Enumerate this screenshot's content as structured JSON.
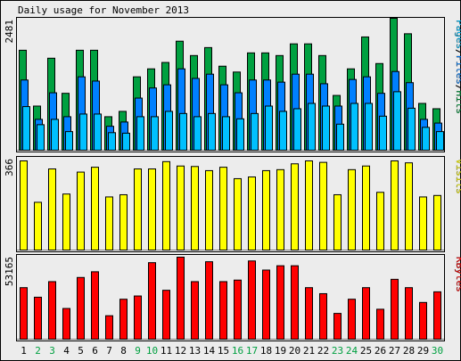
{
  "chart_data": {
    "type": "bar",
    "title": "Daily usage for November 2013",
    "categories": [
      "1",
      "2",
      "3",
      "4",
      "5",
      "6",
      "7",
      "8",
      "9",
      "10",
      "11",
      "12",
      "13",
      "14",
      "15",
      "16",
      "17",
      "18",
      "19",
      "20",
      "21",
      "22",
      "23",
      "24",
      "25",
      "26",
      "27",
      "28",
      "29",
      "30"
    ],
    "weekend_days": [
      "2",
      "3",
      "9",
      "10",
      "16",
      "17",
      "23",
      "24",
      "30"
    ],
    "colors": {
      "background": "#ececec",
      "hits": "#00a040",
      "files": "#0080ff",
      "pages": "#00c0ff",
      "visits": "#ffff00",
      "kbytes": "#ff0000",
      "weekday_label": "#000000",
      "weekend_label": "#00a040"
    },
    "panels": [
      {
        "id": "usage",
        "max_label": "2481",
        "ymax": 2481,
        "legend": [
          {
            "text": "Pages",
            "color": "#00c0ff"
          },
          {
            "text": "/",
            "color": "#000000"
          },
          {
            "text": "Files",
            "color": "#0080ff"
          },
          {
            "text": "/",
            "color": "#000000"
          },
          {
            "text": "Hits",
            "color": "#00a040"
          }
        ],
        "series": [
          {
            "name": "Hits",
            "color": "#00a040",
            "values": [
              1880,
              830,
              1730,
              1070,
              1880,
              1880,
              630,
              730,
              1380,
              1530,
              1650,
              2050,
              1780,
              1930,
              1580,
              1470,
              1830,
              1830,
              1780,
              2000,
              2000,
              1780,
              1030,
              1530,
              2130,
              1630,
              2481,
              2190,
              880,
              780
            ]
          },
          {
            "name": "Files",
            "color": "#0080ff",
            "values": [
              1320,
              580,
              1080,
              630,
              1380,
              1300,
              450,
              530,
              980,
              1170,
              1230,
              1530,
              1350,
              1430,
              1230,
              1080,
              1320,
              1320,
              1280,
              1430,
              1430,
              1250,
              830,
              1330,
              1380,
              1070,
              1480,
              1270,
              580,
              510
            ]
          },
          {
            "name": "Pages",
            "color": "#00c0ff",
            "values": [
              820,
              480,
              580,
              350,
              680,
              680,
              330,
              320,
              630,
              630,
              730,
              690,
              630,
              690,
              630,
              590,
              690,
              830,
              730,
              780,
              880,
              830,
              490,
              880,
              880,
              640,
              1100,
              790,
              430,
              350
            ]
          }
        ]
      },
      {
        "id": "visits",
        "max_label": "366",
        "ymax": 366,
        "legend": [
          {
            "text": "Visits",
            "color": "#ffff00"
          }
        ],
        "series": [
          {
            "name": "Visits",
            "color": "#ffff00",
            "values": [
              366,
              196,
              333,
              230,
              320,
              340,
              218,
              227,
              333,
              333,
              363,
              345,
              343,
              326,
              340,
              293,
              300,
              326,
              330,
              354,
              366,
              360,
              227,
              330,
              345,
              237,
              366,
              358,
              218,
              224
            ]
          }
        ]
      },
      {
        "id": "kbytes",
        "max_label": "53165",
        "ymax": 53165,
        "legend": [
          {
            "text": "KBytes",
            "color": "#ff0000"
          }
        ],
        "series": [
          {
            "name": "KBytes",
            "color": "#ff0000",
            "values": [
              33400,
              27200,
              37300,
              19900,
              40000,
              43700,
              15200,
              25900,
              28000,
              49600,
              31700,
              53165,
              37300,
              50200,
              37300,
              38300,
              50700,
              44800,
              47600,
              47600,
              33400,
              29500,
              16700,
              25900,
              33400,
              19400,
              38800,
              33400,
              23800,
              30700
            ]
          }
        ]
      }
    ]
  }
}
